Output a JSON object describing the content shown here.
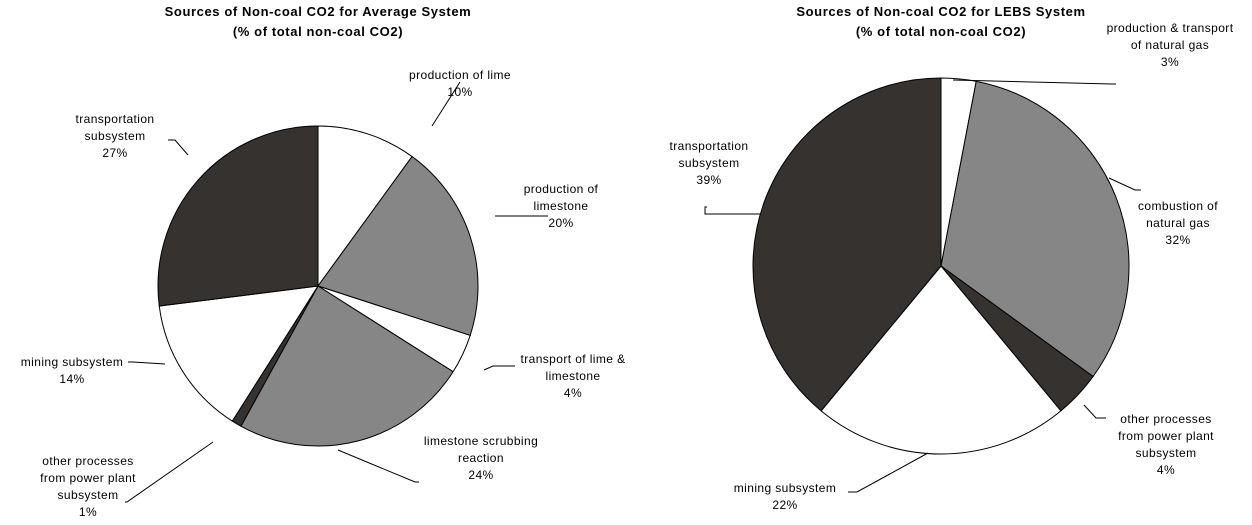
{
  "chart_data": [
    {
      "type": "pie",
      "title": "Sources of Non-coal CO2 for Average System",
      "subtitle": "(% of total non-coal CO2)",
      "slices": [
        {
          "label": "production of lime",
          "value": 10,
          "display": "10%",
          "color": "#ffffff"
        },
        {
          "label": "production of limestone",
          "value": 20,
          "display": "20%",
          "color": "#868686"
        },
        {
          "label": "transport of lime & limestone",
          "value": 4,
          "display": "4%",
          "color": "#ffffff"
        },
        {
          "label": "limestone scrubbing reaction",
          "value": 24,
          "display": "24%",
          "color": "#868686"
        },
        {
          "label": "other processes from power plant subsystem",
          "value": 1,
          "display": "1%",
          "color": "#35322f"
        },
        {
          "label": "mining subsystem",
          "value": 14,
          "display": "14%",
          "color": "#ffffff"
        },
        {
          "label": "transportation subsystem",
          "value": 27,
          "display": "27%",
          "color": "#35322f"
        }
      ]
    },
    {
      "type": "pie",
      "title": "Sources of Non-coal CO2 for LEBS System",
      "subtitle": "(% of total non-coal CO2)",
      "slices": [
        {
          "label": "production & transport of natural gas",
          "value": 3,
          "display": "3%",
          "color": "#ffffff"
        },
        {
          "label": "combustion of natural gas",
          "value": 32,
          "display": "32%",
          "color": "#868686"
        },
        {
          "label": "other processes from power plant subsystem",
          "value": 4,
          "display": "4%",
          "color": "#35322f"
        },
        {
          "label": "mining subsystem",
          "value": 22,
          "display": "22%",
          "color": "#ffffff"
        },
        {
          "label": "transportation subsystem",
          "value": 39,
          "display": "39%",
          "color": "#35322f"
        }
      ]
    }
  ]
}
